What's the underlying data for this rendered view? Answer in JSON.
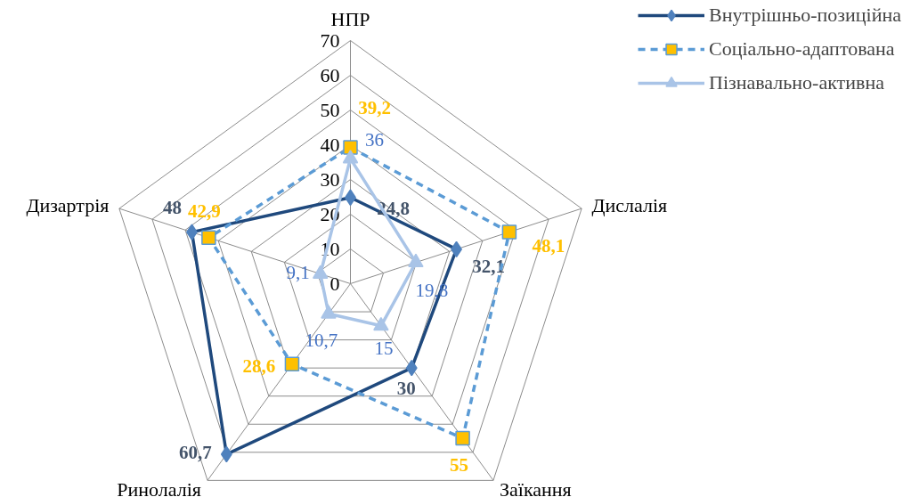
{
  "chart_data": {
    "type": "radar",
    "categories": [
      "НПР",
      "Дислалія",
      "Заїкання",
      "Ринолалія",
      "Дизартрія"
    ],
    "series": [
      {
        "name": "Внутрішньо-позиційна",
        "color": "#1f497d",
        "values": [
          24.8,
          32.1,
          30,
          60.7,
          48
        ],
        "value_labels": [
          "24,8",
          "32,1",
          "30",
          "60,7",
          "48"
        ],
        "marker": "diamond",
        "line_style": "solid"
      },
      {
        "name": "Соціально-адаптована",
        "color": "#5b9bd5",
        "values": [
          39.2,
          48.1,
          55,
          28.6,
          42.9
        ],
        "value_labels": [
          "39,2",
          "48,1",
          "55",
          "28,6",
          "42,9"
        ],
        "marker": "square",
        "line_style": "dashed"
      },
      {
        "name": "Пізнавально-активна",
        "color": "#a9c4e7",
        "values": [
          36,
          19.8,
          15,
          10.7,
          9.1
        ],
        "value_labels": [
          "36",
          "19,8",
          "15",
          "10,7",
          "9,1"
        ],
        "marker": "triangle",
        "line_style": "solid"
      }
    ],
    "ylim": [
      0,
      70
    ],
    "yticks": [
      0,
      10,
      20,
      30,
      40,
      50,
      60,
      70
    ],
    "grid": true,
    "legend": "top right"
  }
}
